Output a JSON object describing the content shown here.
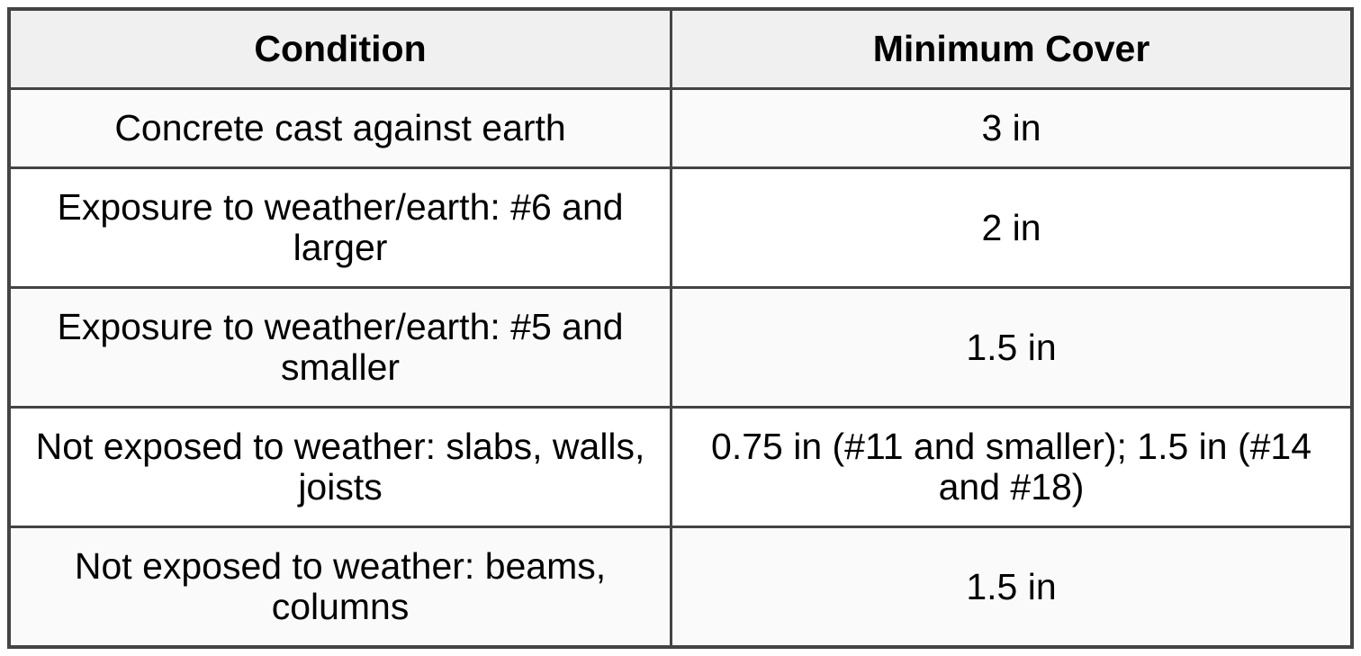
{
  "table": {
    "columns": {
      "condition": "Condition",
      "cover": "Minimum Cover"
    },
    "rows": [
      {
        "condition": "Concrete cast against earth",
        "cover": "3 in"
      },
      {
        "condition": "Exposure to weather/earth: #6 and larger",
        "cover": "2 in"
      },
      {
        "condition": "Exposure to weather/earth: #5 and smaller",
        "cover": "1.5 in"
      },
      {
        "condition": "Not exposed to weather: slabs, walls, joists",
        "cover": "0.75 in (#11 and smaller); 1.5 in (#14 and #18)"
      },
      {
        "condition": "Not exposed to weather: beams, columns",
        "cover": "1.5 in"
      }
    ],
    "colors": {
      "border": "#444444",
      "header_bg": "#f0f0f0",
      "row_odd_bg": "#fafafa",
      "row_even_bg": "#ffffff",
      "text": "#000000"
    }
  }
}
